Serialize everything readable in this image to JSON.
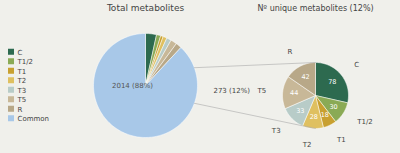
{
  "chart_data": [
    {
      "type": "pie",
      "title": "Total metabolites",
      "categories": [
        "C",
        "T1/2",
        "T1",
        "T2",
        "T3",
        "T5",
        "R",
        "Common"
      ],
      "values": [
        78,
        30,
        18,
        28,
        33,
        44,
        42,
        2014
      ],
      "colors": [
        "#2d6a4f",
        "#8aaa55",
        "#c8a030",
        "#dfc060",
        "#b8ccc8",
        "#c8b898",
        "#b8a888",
        "#a8c8e8"
      ],
      "legend": "left",
      "annotations": [
        "2014 (88%)"
      ]
    },
    {
      "type": "pie",
      "title": "Nº unique metabolites (12%)",
      "categories": [
        "C",
        "T1/2",
        "T1",
        "T2",
        "T3",
        "T5",
        "R"
      ],
      "values": [
        78,
        30,
        18,
        28,
        33,
        44,
        42
      ],
      "colors": [
        "#2d6a4f",
        "#8aaa55",
        "#c8a030",
        "#dfc060",
        "#b8ccc8",
        "#c8b898",
        "#b8a888"
      ],
      "data_labels": true,
      "annotations": [
        "273 (12%)"
      ]
    }
  ]
}
